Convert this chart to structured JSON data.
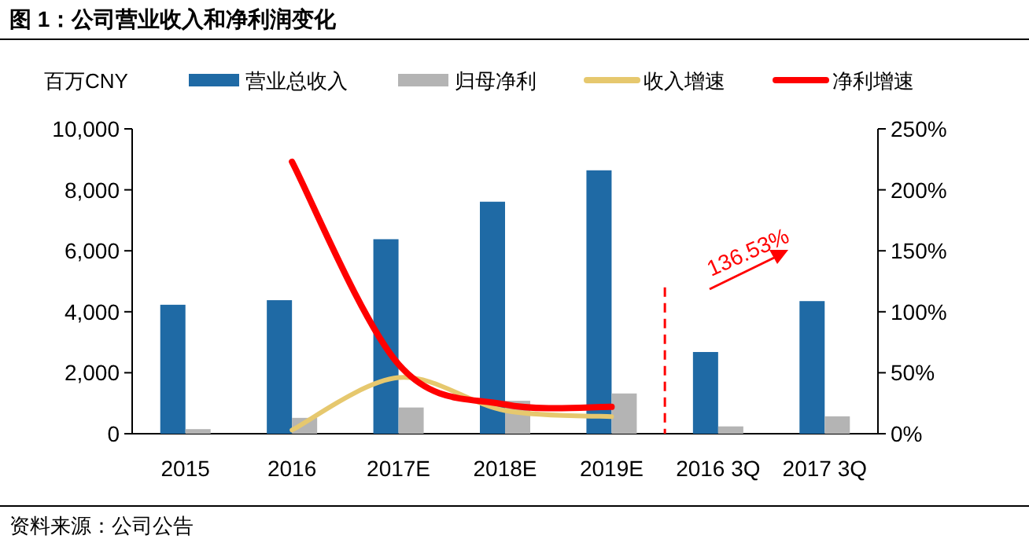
{
  "chart_data": {
    "type": "bar",
    "title": "图 1：公司营业收入和净利润变化",
    "ylabel": "百万CNY",
    "categories": [
      "2015",
      "2016",
      "2017E",
      "2018E",
      "2019E",
      "2016 3Q",
      "2017 3Q"
    ],
    "series": [
      {
        "name": "营业总收入",
        "color": "#1f6aa5",
        "values": [
          4230,
          4380,
          6380,
          7610,
          8640,
          2680,
          4350
        ]
      },
      {
        "name": "归母净利",
        "color": "#b4b4b4",
        "values": [
          150,
          520,
          860,
          1080,
          1320,
          240,
          570
        ]
      },
      {
        "name": "收入增速",
        "type": "line",
        "axis": "y2",
        "color": "#e6c86e",
        "values": [
          null,
          3,
          46,
          19,
          14,
          null,
          null
        ]
      },
      {
        "name": "净利增速",
        "type": "line",
        "axis": "y2",
        "color": "#ff0000",
        "values": [
          null,
          223,
          57,
          24,
          22,
          null,
          null
        ]
      }
    ],
    "ylim": [
      0,
      10000
    ],
    "yticks": [
      {
        "value": 0,
        "label": "0"
      },
      {
        "value": 2000,
        "label": "2,000"
      },
      {
        "value": 4000,
        "label": "4,000"
      },
      {
        "value": 6000,
        "label": "6,000"
      },
      {
        "value": 8000,
        "label": "8,000"
      },
      {
        "value": 10000,
        "label": "10,000"
      }
    ],
    "y2lim": [
      0,
      250
    ],
    "y2ticks": [
      {
        "value": 0,
        "label": "0%"
      },
      {
        "value": 50,
        "label": "50%"
      },
      {
        "value": 100,
        "label": "100%"
      },
      {
        "value": 150,
        "label": "150%"
      },
      {
        "value": 200,
        "label": "200%"
      },
      {
        "value": 250,
        "label": "250%"
      }
    ],
    "annotations": [
      "136.53%",
      "资料来源：公司公告"
    ],
    "legend": "top",
    "grid": false
  }
}
